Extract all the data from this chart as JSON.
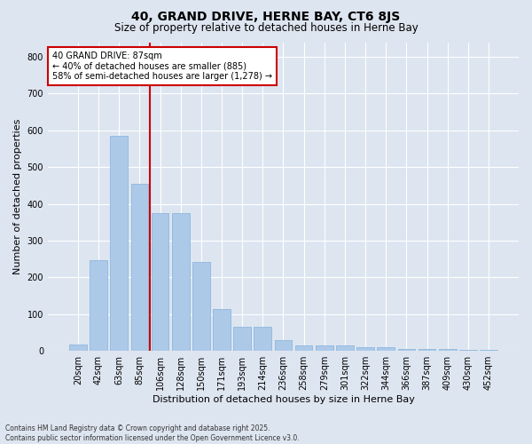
{
  "title": "40, GRAND DRIVE, HERNE BAY, CT6 8JS",
  "subtitle": "Size of property relative to detached houses in Herne Bay",
  "xlabel": "Distribution of detached houses by size in Herne Bay",
  "ylabel": "Number of detached properties",
  "categories": [
    "20sqm",
    "42sqm",
    "63sqm",
    "85sqm",
    "106sqm",
    "128sqm",
    "150sqm",
    "171sqm",
    "193sqm",
    "214sqm",
    "236sqm",
    "258sqm",
    "279sqm",
    "301sqm",
    "322sqm",
    "344sqm",
    "366sqm",
    "387sqm",
    "409sqm",
    "430sqm",
    "452sqm"
  ],
  "values": [
    18,
    248,
    585,
    455,
    375,
    375,
    243,
    115,
    65,
    65,
    30,
    15,
    15,
    15,
    10,
    10,
    5,
    5,
    5,
    3,
    3
  ],
  "bar_color": "#adc9e8",
  "bar_edge_color": "#8cb8de",
  "vline_color": "#cc0000",
  "vline_index": 3.5,
  "annotation_text": "40 GRAND DRIVE: 87sqm\n← 40% of detached houses are smaller (885)\n58% of semi-detached houses are larger (1,278) →",
  "annotation_box_color": "#ffffff",
  "annotation_box_edge": "#cc0000",
  "background_color": "#dde5f0",
  "plot_background": "#dde5f0",
  "grid_color": "#ffffff",
  "footer": "Contains HM Land Registry data © Crown copyright and database right 2025.\nContains public sector information licensed under the Open Government Licence v3.0.",
  "ylim": [
    0,
    840
  ],
  "yticks": [
    0,
    100,
    200,
    300,
    400,
    500,
    600,
    700,
    800
  ],
  "title_fontsize": 10,
  "subtitle_fontsize": 8.5,
  "ylabel_fontsize": 8,
  "xlabel_fontsize": 8,
  "tick_fontsize": 7,
  "annotation_fontsize": 7,
  "footer_fontsize": 5.5
}
